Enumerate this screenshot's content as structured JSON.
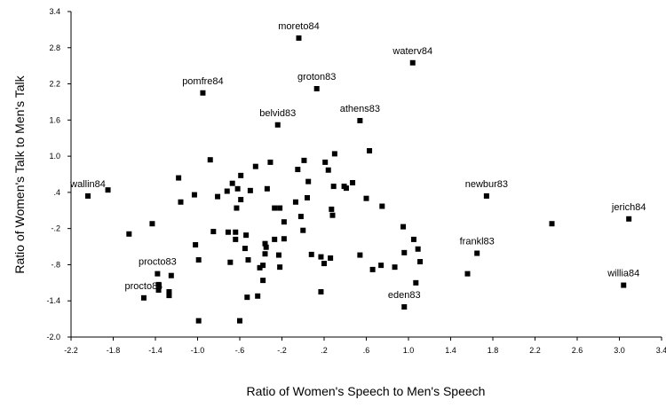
{
  "chart_data": {
    "type": "scatter",
    "xlabel": "Ratio of Women's Speech to Men's Speech",
    "ylabel": "Ratio of Women's Talk to Men's Talk",
    "xlim": [
      -2.2,
      3.4
    ],
    "ylim": [
      -2.0,
      3.4
    ],
    "xticks": [
      {
        "value": -2.2,
        "label": "-2.2"
      },
      -1.8,
      -1.4,
      {
        "value": -1.0,
        "label": "-1.0"
      },
      {
        "value": -0.6,
        "label": "-.6"
      },
      {
        "value": -0.2,
        "label": "-.2"
      },
      {
        "value": 0.2,
        "label": ".2"
      },
      {
        "value": 0.6,
        "label": ".6"
      },
      {
        "value": 1.0,
        "label": "1.0"
      },
      1.4,
      1.8,
      2.2,
      2.6,
      {
        "value": 3.0,
        "label": "3.0"
      },
      3.4
    ],
    "yticks": [
      {
        "value": -2.0,
        "label": "-2.0"
      },
      -1.4,
      {
        "value": -0.8,
        "label": "-.8"
      },
      {
        "value": -0.2,
        "label": "-.2"
      },
      {
        "value": 0.4,
        "label": ".4"
      },
      {
        "value": 1.0,
        "label": "1.0"
      },
      1.6,
      2.2,
      2.8,
      3.4
    ],
    "color": "#000000",
    "grid": false,
    "x": [
      -0.04,
      1.04,
      -0.95,
      0.13,
      -0.24,
      0.54,
      -2.04,
      1.74,
      3.09,
      1.65,
      3.04,
      0.96,
      -1.38,
      -1.51,
      -1.85,
      -1.65,
      -1.43,
      -1.18,
      -1.16,
      -1.03,
      -1.02,
      -0.99,
      -0.88,
      -0.81,
      -0.85,
      -0.72,
      -0.71,
      -0.67,
      -0.64,
      -0.62,
      -0.59,
      -0.63,
      -0.59,
      -0.54,
      -0.55,
      -0.64,
      -0.69,
      -0.52,
      -0.5,
      -0.45,
      -0.34,
      -0.31,
      -0.27,
      -0.22,
      -0.18,
      -0.27,
      -0.23,
      -0.22,
      -0.18,
      -0.36,
      -0.35,
      -0.36,
      -0.38,
      -0.38,
      -0.41,
      -0.53,
      -0.43,
      -0.6,
      -0.99,
      -1.37,
      -1.25,
      -1.27,
      -1.27,
      -1.37,
      -0.05,
      -0.02,
      -0.07,
      0.0,
      0.04,
      0.05,
      0.01,
      0.08,
      0.17,
      0.17,
      0.21,
      0.24,
      0.27,
      0.28,
      0.29,
      0.3,
      0.39,
      0.2,
      0.26,
      0.41,
      0.47,
      0.54,
      0.6,
      0.63,
      0.66,
      0.75,
      0.74,
      0.87,
      0.95,
      0.96,
      1.05,
      1.09,
      1.11,
      1.07,
      1.56,
      2.36
    ],
    "y": [
      2.96,
      2.55,
      2.05,
      2.12,
      1.52,
      1.59,
      0.34,
      0.34,
      -0.04,
      -0.61,
      -1.14,
      -1.5,
      -0.95,
      -1.35,
      0.44,
      -0.29,
      -0.12,
      0.64,
      0.24,
      0.36,
      -0.47,
      -0.72,
      0.94,
      0.33,
      -0.25,
      0.42,
      -0.26,
      0.55,
      -0.26,
      0.46,
      0.68,
      0.14,
      0.28,
      -0.31,
      -0.53,
      -0.38,
      -0.76,
      -0.72,
      0.43,
      0.83,
      0.46,
      0.9,
      0.14,
      0.14,
      -0.09,
      -0.38,
      -0.64,
      -0.84,
      -0.37,
      -0.45,
      -0.51,
      -0.62,
      -0.81,
      -1.06,
      -0.85,
      -1.34,
      -1.32,
      -1.73,
      -1.73,
      -1.13,
      -0.98,
      -1.25,
      -1.31,
      -1.22,
      0.78,
      0.0,
      0.24,
      -0.23,
      0.31,
      0.58,
      0.93,
      -0.63,
      -0.67,
      -1.25,
      0.9,
      0.77,
      0.12,
      0.02,
      0.5,
      1.04,
      0.5,
      -0.78,
      -0.69,
      0.47,
      0.56,
      -0.64,
      0.3,
      1.09,
      -0.88,
      0.17,
      -0.81,
      -0.84,
      -0.17,
      -0.6,
      -0.38,
      -0.54,
      -0.75,
      -1.1,
      -0.95,
      -0.12
    ],
    "labels": [
      "moreto84",
      "waterv84",
      "pomfre84",
      "groton83",
      "belvid83",
      "athens83",
      "wallin84",
      "newbur83",
      "jerich84",
      "frankl83",
      "willia84",
      "eden83",
      "procto83",
      "procto84",
      null,
      null,
      null,
      null,
      null,
      null,
      null,
      null,
      null,
      null,
      null,
      null,
      null,
      null,
      null,
      null,
      null,
      null,
      null,
      null,
      null,
      null,
      null,
      null,
      null,
      null,
      null,
      null,
      null,
      null,
      null,
      null,
      null,
      null,
      null,
      null,
      null,
      null,
      null,
      null,
      null,
      null,
      null,
      null,
      null,
      null,
      null,
      null,
      null,
      null,
      null,
      null,
      null,
      null,
      null,
      null,
      null,
      null,
      null,
      null,
      null,
      null,
      null,
      null,
      null,
      null,
      null,
      null,
      null,
      null,
      null,
      null,
      null,
      null,
      null,
      null,
      null,
      null,
      null,
      null,
      null,
      null,
      null,
      null,
      null,
      null
    ]
  }
}
